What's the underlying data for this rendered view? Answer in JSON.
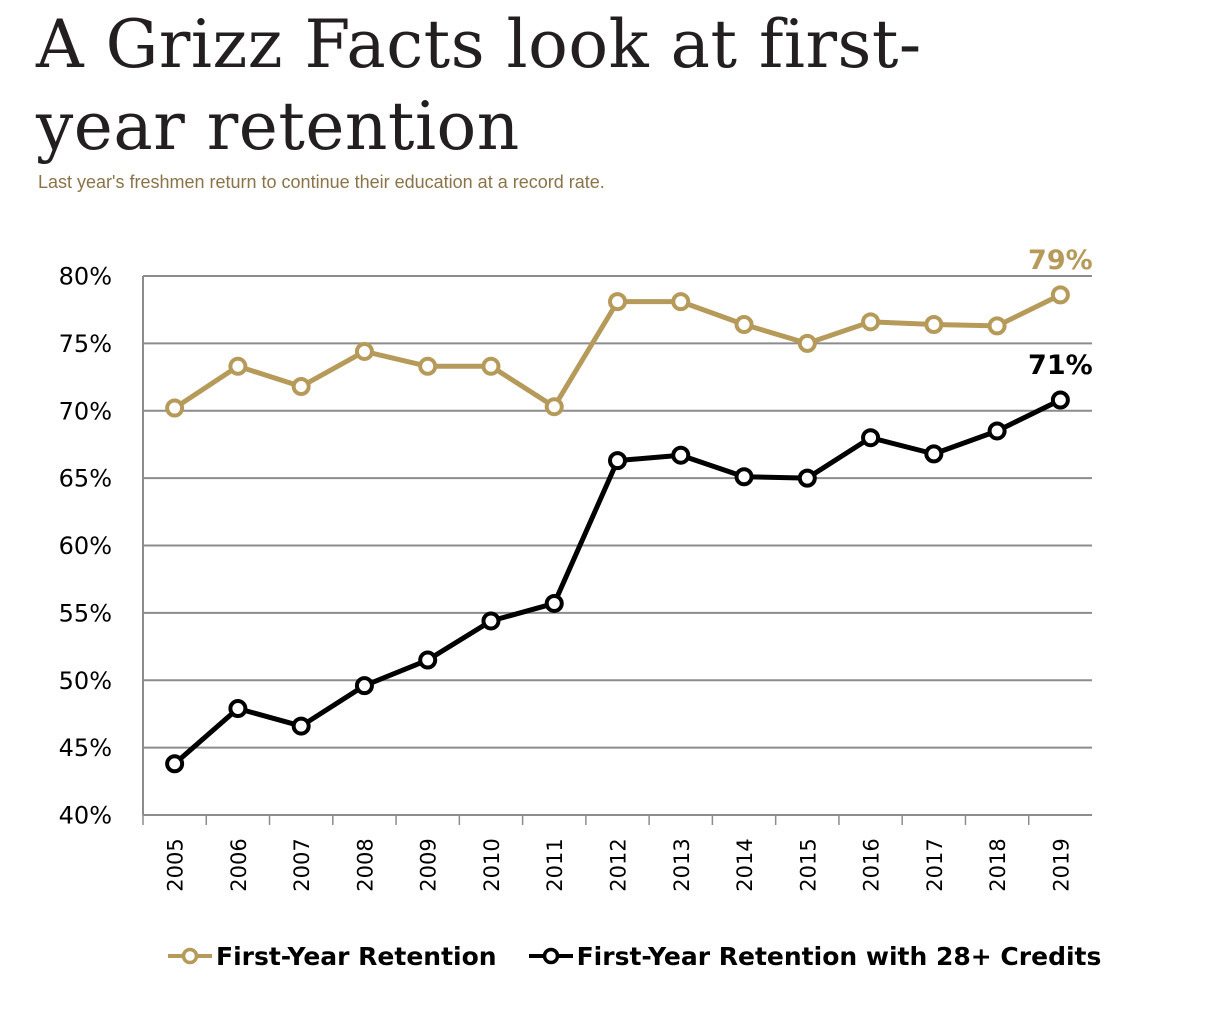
{
  "header": {
    "title": "A Grizz Facts look at first-year retention",
    "title_line1": "A Grizz Facts look at first-",
    "title_line2": "year retention",
    "subtitle": "Last year's freshmen return to continue their education at a record rate."
  },
  "colors": {
    "gold": "#b59a5a",
    "black": "#000000",
    "grid": "#8c8c8c"
  },
  "chart_data": {
    "type": "line",
    "x": [
      "2005",
      "2006",
      "2007",
      "2008",
      "2009",
      "2010",
      "2011",
      "2012",
      "2013",
      "2014",
      "2015",
      "2016",
      "2017",
      "2018",
      "2019"
    ],
    "ylim": [
      40,
      80
    ],
    "yticks": [
      40,
      45,
      50,
      55,
      60,
      65,
      70,
      75,
      80
    ],
    "ytick_labels": [
      "40%",
      "45%",
      "50%",
      "55%",
      "60%",
      "65%",
      "70%",
      "75%",
      "80%"
    ],
    "grid": true,
    "legend_position": "bottom",
    "series": [
      {
        "name": "First-Year Retention",
        "color": "#b59a5a",
        "values": [
          70.2,
          73.3,
          71.8,
          74.4,
          73.3,
          73.3,
          70.3,
          78.1,
          78.1,
          76.4,
          75.0,
          76.6,
          76.4,
          76.3,
          78.6
        ],
        "end_label": "79%"
      },
      {
        "name": "First-Year Retention with 28+ Credits",
        "color": "#000000",
        "values": [
          43.8,
          47.9,
          46.6,
          49.6,
          51.5,
          54.4,
          55.7,
          66.3,
          66.7,
          65.1,
          65.0,
          68.0,
          66.8,
          68.5,
          70.8
        ],
        "end_label": "71%"
      }
    ]
  }
}
